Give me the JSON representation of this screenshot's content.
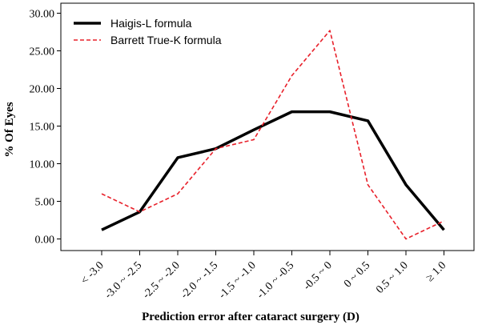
{
  "chart_data": {
    "type": "line",
    "title": "",
    "xlabel": "Prediction error after cataract surgery (D)",
    "ylabel": "% Of Eyes",
    "categories": [
      "< -3.0",
      "-3.0 ~ -2.5",
      "-2.5 ~ -2.0",
      "-2.0 ~ -1.5",
      "-1.5 ~ -1.0",
      "-1.0 ~ -0.5",
      "-0.5 ~ 0",
      "0 ~ 0.5",
      "0.5 ~ 1.0",
      "≥ 1.0"
    ],
    "ylim": [
      0,
      30
    ],
    "yticks": [
      "0.00",
      "5.00",
      "10.00",
      "15.00",
      "20.00",
      "25.00",
      "30.00"
    ],
    "legend_position": "top-left",
    "series": [
      {
        "name": "Haigis-L formula",
        "color": "#000000",
        "style": "solid",
        "values": [
          1.2,
          3.6,
          10.8,
          12.0,
          14.5,
          16.9,
          16.9,
          15.7,
          7.2,
          1.2
        ]
      },
      {
        "name": "Barrett True-K formula",
        "color": "#e8202a",
        "style": "dashed",
        "values": [
          6.0,
          3.6,
          6.0,
          12.0,
          13.2,
          21.7,
          27.7,
          7.2,
          0.0,
          2.4
        ]
      }
    ]
  }
}
